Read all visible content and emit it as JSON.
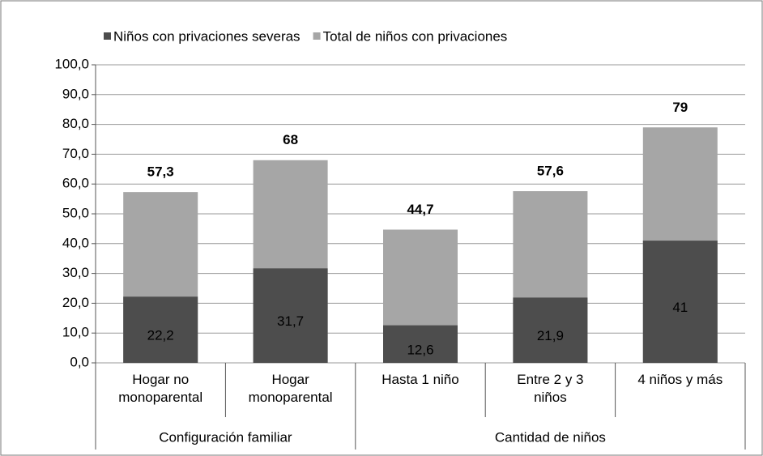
{
  "chart_data": {
    "type": "bar",
    "overlap": true,
    "groups": [
      {
        "label": "Configuración familiar",
        "categories": [
          "Hogar no monoparental",
          "Hogar monoparental"
        ]
      },
      {
        "label": "Cantidad de niños",
        "categories": [
          "Hasta 1 niño",
          "Entre 2 y 3 niños",
          "4 niños y más"
        ]
      }
    ],
    "series": [
      {
        "name": "Niños con privaciones severas",
        "color": "#4d4d4d",
        "values": [
          22.2,
          31.7,
          12.6,
          21.9,
          41
        ],
        "value_labels": [
          "22,2",
          "31,7",
          "12,6",
          "21,9",
          "41"
        ]
      },
      {
        "name": "Total de niños con privaciones",
        "color": "#a6a6a6",
        "values": [
          57.3,
          68,
          44.7,
          57.6,
          79
        ],
        "value_labels": [
          "57,3",
          "68",
          "44,7",
          "57,6",
          "79"
        ]
      }
    ],
    "ylim": [
      0,
      100
    ],
    "yticks": [
      {
        "value": 0,
        "label": "0,0"
      },
      {
        "value": 10,
        "label": "10,0"
      },
      {
        "value": 20,
        "label": "20,0"
      },
      {
        "value": 30,
        "label": "30,0"
      },
      {
        "value": 40,
        "label": "40,0"
      },
      {
        "value": 50,
        "label": "50,0"
      },
      {
        "value": 60,
        "label": "60,0"
      },
      {
        "value": 70,
        "label": "70,0"
      },
      {
        "value": 80,
        "label": "80,0"
      },
      {
        "value": 90,
        "label": "90,0"
      },
      {
        "value": 100,
        "label": "100,0"
      }
    ],
    "grid": true,
    "legend": "top"
  }
}
